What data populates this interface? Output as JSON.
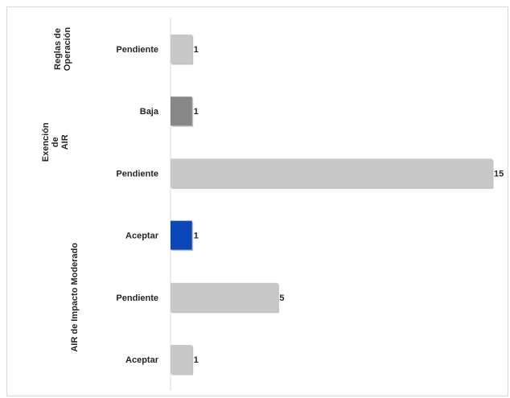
{
  "chart_data": {
    "type": "bar",
    "orientation": "horizontal",
    "title": "",
    "xlabel": "",
    "ylabel": "",
    "xlim": [
      0,
      15
    ],
    "grid": false,
    "legend": "none",
    "groups": [
      {
        "label_lines": [
          "Reglas de",
          "Operación"
        ],
        "bars": [
          {
            "category": "Pendiente",
            "value": 1,
            "color": "#c8c8c8"
          }
        ]
      },
      {
        "label_lines": [
          "Exención",
          "de",
          "AIR"
        ],
        "bars": [
          {
            "category": "Baja",
            "value": 1,
            "color": "#878787"
          },
          {
            "category": "Pendiente",
            "value": 15,
            "color": "#c8c8c8"
          }
        ]
      },
      {
        "label_lines": [
          "AIR de Impacto Moderado"
        ],
        "bars": [
          {
            "category": "Aceptar",
            "value": 1,
            "color": "#0a47b8"
          },
          {
            "category": "Pendiente",
            "value": 5,
            "color": "#c8c8c8"
          },
          {
            "category": "Aceptar",
            "value": 1,
            "color": "#c8c8c8"
          }
        ]
      }
    ]
  }
}
